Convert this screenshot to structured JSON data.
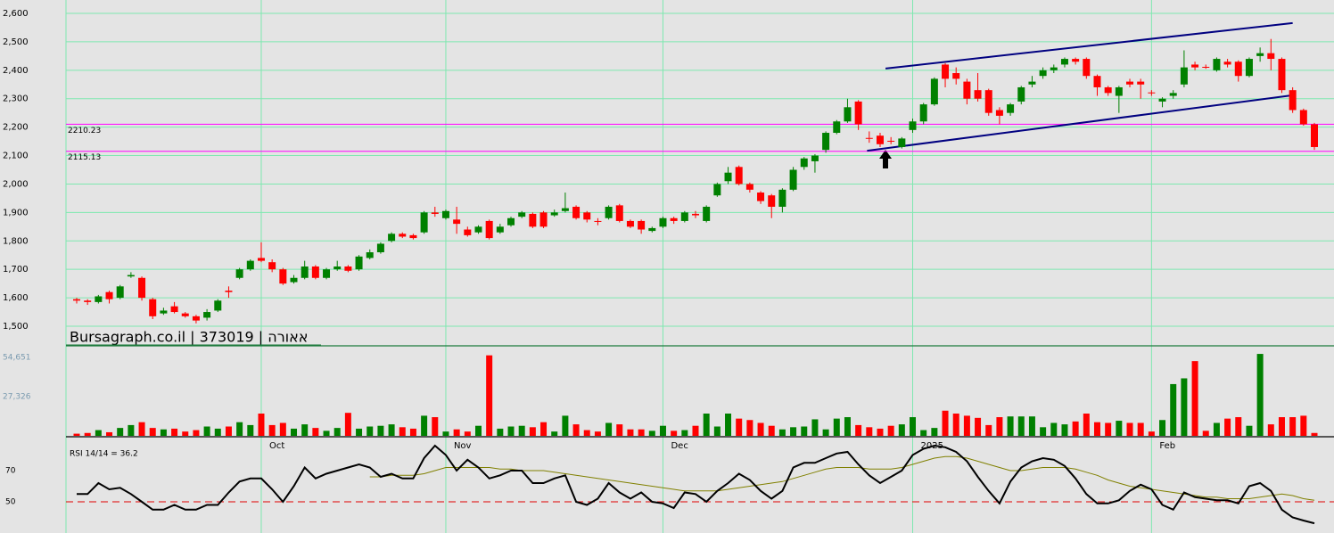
{
  "chart_data": [
    {
      "type": "candlestick",
      "categories": [
        null,
        null,
        null,
        null,
        null,
        null,
        null,
        null,
        null,
        null,
        null,
        null,
        null,
        null,
        null,
        null,
        null,
        "Oct",
        null,
        null,
        null,
        null,
        null,
        null,
        null,
        null,
        null,
        null,
        null,
        null,
        null,
        null,
        null,
        null,
        "Nov",
        null,
        null,
        null,
        null,
        null,
        null,
        null,
        null,
        null,
        null,
        null,
        null,
        null,
        null,
        null,
        null,
        null,
        null,
        null,
        "Dec",
        null,
        null,
        null,
        null,
        null,
        null,
        null,
        null,
        null,
        null,
        null,
        null,
        null,
        null,
        null,
        null,
        null,
        null,
        null,
        null,
        null,
        null,
        "2025",
        null,
        null,
        null,
        null,
        null,
        null,
        null,
        null,
        null,
        null,
        null,
        null,
        null,
        null,
        null,
        null,
        null,
        null,
        null,
        null,
        null,
        "Feb",
        null,
        null,
        null,
        null,
        null,
        null,
        null,
        null,
        null,
        null,
        null,
        null,
        null,
        null,
        null
      ],
      "open": [
        1595,
        1590,
        1585,
        1620,
        1600,
        1675,
        1670,
        1595,
        1545,
        1570,
        1545,
        1535,
        1530,
        1555,
        1625,
        1670,
        1700,
        1740,
        1725,
        1700,
        1655,
        1670,
        1710,
        1670,
        1700,
        1710,
        1700,
        1740,
        1760,
        1800,
        1825,
        1820,
        1830,
        1900,
        1880,
        1875,
        1840,
        1830,
        1870,
        1830,
        1855,
        1885,
        1895,
        1900,
        1890,
        1905,
        1920,
        1900,
        1870,
        1880,
        1925,
        1870,
        1870,
        1835,
        1850,
        1880,
        1870,
        1895,
        1870,
        1960,
        2010,
        2060,
        2000,
        1970,
        1960,
        1920,
        1980,
        2060,
        2080,
        2120,
        2180,
        2220,
        2290,
        2162,
        2170,
        2152,
        2130,
        2190,
        2220,
        2280,
        2420,
        2390,
        2360,
        2330,
        2330,
        2260,
        2250,
        2290,
        2350,
        2380,
        2400,
        2420,
        2440,
        2440,
        2380,
        2340,
        2310,
        2360,
        2360,
        2322,
        2290,
        2310,
        2350,
        2420,
        2412,
        2400,
        2430,
        2430,
        2380,
        2450,
        2460,
        2440,
        2330,
        2260,
        2210
      ],
      "high": [
        1600,
        1595,
        1610,
        1625,
        1645,
        1690,
        1675,
        1600,
        1565,
        1585,
        1550,
        1540,
        1560,
        1595,
        1640,
        1705,
        1735,
        1795,
        1735,
        1705,
        1680,
        1730,
        1715,
        1705,
        1730,
        1715,
        1750,
        1770,
        1795,
        1830,
        1830,
        1825,
        1905,
        1920,
        1910,
        1920,
        1850,
        1855,
        1875,
        1860,
        1885,
        1905,
        1900,
        1905,
        1910,
        1970,
        1925,
        1905,
        1880,
        1925,
        1930,
        1875,
        1875,
        1850,
        1885,
        1885,
        1905,
        1905,
        1925,
        2005,
        2060,
        2065,
        2005,
        1975,
        1965,
        1985,
        2060,
        2095,
        2105,
        2185,
        2225,
        2300,
        2295,
        2185,
        2180,
        2165,
        2165,
        2230,
        2285,
        2375,
        2425,
        2410,
        2370,
        2390,
        2335,
        2270,
        2285,
        2345,
        2380,
        2410,
        2420,
        2445,
        2445,
        2445,
        2385,
        2345,
        2345,
        2370,
        2370,
        2330,
        2305,
        2330,
        2470,
        2430,
        2420,
        2445,
        2440,
        2435,
        2445,
        2480,
        2510,
        2445,
        2340,
        2265,
        2215
      ],
      "low": [
        1580,
        1575,
        1580,
        1580,
        1595,
        1670,
        1590,
        1525,
        1540,
        1545,
        1530,
        1510,
        1520,
        1550,
        1600,
        1665,
        1695,
        1725,
        1690,
        1645,
        1650,
        1665,
        1665,
        1665,
        1695,
        1690,
        1695,
        1735,
        1755,
        1795,
        1810,
        1805,
        1825,
        1885,
        1875,
        1825,
        1815,
        1825,
        1805,
        1825,
        1850,
        1880,
        1845,
        1845,
        1885,
        1900,
        1875,
        1865,
        1855,
        1875,
        1865,
        1845,
        1825,
        1830,
        1845,
        1860,
        1865,
        1880,
        1865,
        1955,
        2000,
        1995,
        1970,
        1930,
        1880,
        1900,
        1975,
        2050,
        2040,
        2110,
        2175,
        2215,
        2190,
        2145,
        2130,
        2140,
        2125,
        2180,
        2210,
        2275,
        2340,
        2350,
        2280,
        2290,
        2240,
        2210,
        2240,
        2280,
        2340,
        2370,
        2390,
        2410,
        2420,
        2370,
        2310,
        2310,
        2250,
        2340,
        2300,
        2310,
        2270,
        2300,
        2340,
        2400,
        2405,
        2395,
        2410,
        2360,
        2375,
        2430,
        2400,
        2320,
        2250,
        2205,
        2120
      ],
      "close": [
        1590,
        1585,
        1605,
        1595,
        1640,
        1680,
        1600,
        1535,
        1555,
        1550,
        1535,
        1520,
        1550,
        1590,
        1620,
        1700,
        1730,
        1730,
        1700,
        1650,
        1670,
        1710,
        1670,
        1700,
        1710,
        1695,
        1745,
        1760,
        1790,
        1825,
        1815,
        1810,
        1900,
        1895,
        1905,
        1860,
        1820,
        1850,
        1810,
        1850,
        1880,
        1900,
        1850,
        1850,
        1900,
        1915,
        1880,
        1875,
        1868,
        1920,
        1870,
        1850,
        1840,
        1845,
        1880,
        1870,
        1900,
        1890,
        1920,
        2000,
        2040,
        2000,
        1980,
        1940,
        1920,
        1980,
        2050,
        2090,
        2100,
        2180,
        2220,
        2270,
        2210,
        2160,
        2140,
        2150,
        2160,
        2220,
        2280,
        2370,
        2370,
        2370,
        2300,
        2300,
        2250,
        2240,
        2280,
        2340,
        2360,
        2400,
        2410,
        2440,
        2430,
        2380,
        2340,
        2320,
        2340,
        2350,
        2350,
        2320,
        2300,
        2320,
        2410,
        2410,
        2410,
        2440,
        2420,
        2380,
        2440,
        2460,
        2440,
        2330,
        2260,
        2210,
        2130
      ],
      "up_color": "#008000",
      "down_color": "#ff0000",
      "ylim": [
        1500,
        2600
      ],
      "yticks": [
        {
          "value": 1500,
          "label": "1,500"
        },
        {
          "value": 1600,
          "label": "1,600"
        },
        {
          "value": 1700,
          "label": "1,700"
        },
        {
          "value": 1800,
          "label": "1,800"
        },
        {
          "value": 1900,
          "label": "1,900"
        },
        {
          "value": 2000,
          "label": "2,000"
        },
        {
          "value": 2100,
          "label": "2,100"
        },
        {
          "value": 2200,
          "label": "2,200"
        },
        {
          "value": 2300,
          "label": "2,300"
        },
        {
          "value": 2400,
          "label": "2,400"
        },
        {
          "value": 2500,
          "label": "2,500"
        },
        {
          "value": 2600,
          "label": "2,600"
        }
      ],
      "grid": true,
      "hlines": [
        2210.23,
        2115.13
      ],
      "hline_color": "#ff00ff",
      "channels": [
        {
          "from": [
            74.5,
            2406
          ],
          "to": [
            112,
            2566
          ]
        },
        {
          "from": [
            72.8,
            2117
          ],
          "to": [
            112,
            2312
          ]
        }
      ],
      "channel_color": "#000080",
      "watermark": "Bursagraph.co.il | 373019 | אאורה"
    },
    {
      "type": "bar",
      "values": [
        1500,
        2000,
        4000,
        2500,
        5500,
        7500,
        9500,
        5500,
        4500,
        5000,
        3000,
        4000,
        6500,
        5000,
        6500,
        9500,
        7500,
        15500,
        7500,
        9000,
        5000,
        8000,
        5500,
        3500,
        5500,
        16000,
        5000,
        6500,
        7000,
        8000,
        6000,
        5000,
        14000,
        13000,
        3000,
        4500,
        3000,
        7000,
        56000,
        5000,
        6500,
        7000,
        6000,
        9500,
        3000,
        14000,
        8000,
        4000,
        3000,
        9000,
        8000,
        4500,
        4500,
        3500,
        7000,
        3500,
        4000,
        7000,
        15500,
        6500,
        15500,
        12000,
        11000,
        9000,
        7000,
        4500,
        6000,
        6500,
        11500,
        4500,
        12000,
        13000,
        7500,
        6000,
        5000,
        7000,
        8000,
        13000,
        4000,
        5500,
        17500,
        15500,
        14000,
        12500,
        7500,
        13000,
        13500,
        13500,
        13500,
        6000,
        9000,
        8000,
        10000,
        15500,
        9500,
        9000,
        10500,
        9000,
        9000,
        3000,
        11000,
        36000,
        40000,
        52000,
        3500,
        9000,
        12000,
        13000,
        7000,
        57000,
        8000,
        13000,
        13000,
        14000,
        2000
      ],
      "ylim": [
        0,
        62000
      ],
      "yticks": [
        {
          "value": 27326,
          "label": "27,326"
        },
        {
          "value": 54651,
          "label": "54,651"
        }
      ]
    },
    {
      "type": "line",
      "label": "RSI 14/14 = 36.2",
      "series": [
        {
          "color": "#000000",
          "values": [
            55,
            55,
            62,
            58,
            59,
            55,
            50,
            45,
            45,
            48,
            45,
            45,
            48,
            48,
            56,
            63,
            65,
            65,
            58,
            50,
            60,
            72,
            65,
            68,
            70,
            72,
            74,
            72,
            66,
            68,
            65,
            65,
            78,
            86,
            80,
            70,
            77,
            72,
            65,
            67,
            70,
            70,
            62,
            62,
            65,
            67,
            50,
            48,
            52,
            62,
            56,
            52,
            56,
            50,
            49,
            46,
            56,
            55,
            50,
            57,
            62,
            68,
            64,
            57,
            52,
            57,
            72,
            75,
            75,
            78,
            81,
            82,
            74,
            67,
            62,
            66,
            70,
            80,
            84,
            86,
            85,
            82,
            76,
            66,
            57,
            49,
            63,
            72,
            76,
            78,
            77,
            73,
            65,
            55,
            49,
            49,
            51,
            57,
            61,
            58,
            48,
            45,
            56,
            53,
            52,
            51,
            51,
            49,
            60,
            62,
            57,
            45,
            40,
            38,
            36.2
          ]
        },
        {
          "color": "#808000",
          "values": [
            null,
            null,
            null,
            null,
            null,
            null,
            null,
            null,
            null,
            null,
            null,
            null,
            null,
            null,
            null,
            null,
            null,
            null,
            null,
            null,
            null,
            null,
            null,
            null,
            null,
            null,
            null,
            66,
            66,
            67,
            67,
            67,
            68,
            70,
            72,
            72,
            72,
            72,
            72,
            71,
            71,
            70,
            70,
            70,
            69,
            68,
            67,
            66,
            65,
            64,
            63,
            62,
            61,
            60,
            59,
            58,
            57,
            57,
            57,
            57,
            58,
            59,
            60,
            61,
            62,
            63,
            65,
            67,
            69,
            71,
            72,
            72,
            72,
            71,
            71,
            71,
            72,
            74,
            76,
            78,
            79,
            79,
            78,
            76,
            74,
            72,
            70,
            70,
            71,
            72,
            72,
            72,
            71,
            69,
            67,
            64,
            62,
            60,
            59,
            58,
            57,
            56,
            55,
            54,
            53,
            53,
            52,
            52,
            52,
            53,
            54,
            55,
            54,
            52,
            51
          ]
        }
      ],
      "reference": 50,
      "reference_color": "#e00000",
      "ylim": [
        30,
        90
      ],
      "yticks": [
        50,
        70
      ]
    }
  ]
}
